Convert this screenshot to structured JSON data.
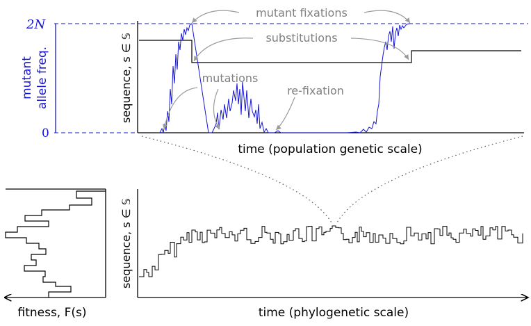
{
  "colors": {
    "axis": "#000000",
    "allele": "#1414d2",
    "annotation": "#808080",
    "annotation_arrow": "#9a9a9a",
    "sequence": "#000000",
    "dotted": "#555555"
  },
  "top_panel": {
    "y_axis_label": "sequence, s ∈ 𝕊",
    "x_axis_label": "time (population genetic scale)",
    "freq_label_line1": "mutant",
    "freq_label_line2": "allele freq.",
    "tick_top": "2N",
    "tick_bottom": "0",
    "annotations": {
      "mutant_fixations": "mutant fixations",
      "substitutions": "substitutions",
      "mutations": "mutations",
      "re_fixation": "re-fixation"
    }
  },
  "bottom_panel": {
    "y_axis_label": "sequence, s ∈ 𝕊",
    "x_axis_label": "time (phylogenetic scale)"
  },
  "fitness_panel": {
    "x_axis_label": "fitness, F(s)"
  }
}
